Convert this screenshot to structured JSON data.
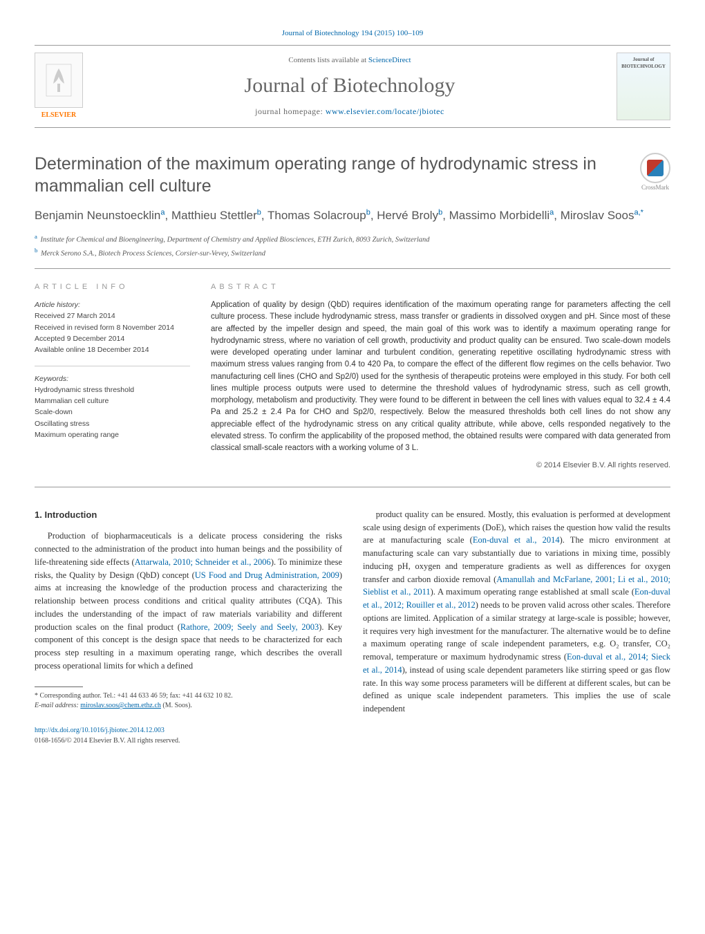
{
  "header": {
    "journal_ref": "Journal of Biotechnology 194 (2015) 100–109",
    "contents_prefix": "Contents lists available at ",
    "contents_link": "ScienceDirect",
    "journal_name": "Journal of Biotechnology",
    "homepage_prefix": "journal homepage: ",
    "homepage_url": "www.elsevier.com/locate/jbiotec",
    "elsevier_label": "ELSEVIER",
    "cover_label": "Journal of BIOTECHNOLOGY"
  },
  "crossmark": {
    "label": "CrossMark"
  },
  "title": "Determination of the maximum operating range of hydrodynamic stress in mammalian cell culture",
  "authors_html": "Benjamin Neunstoecklin<sup>a</sup>, Matthieu Stettler<sup>b</sup>, Thomas Solacroup<sup>b</sup>, Hervé Broly<sup>b</sup>, Massimo Morbidelli<sup>a</sup>, Miroslav Soos<sup>a,*</sup>",
  "affiliations": [
    {
      "sup": "a",
      "text": "Institute for Chemical and Bioengineering, Department of Chemistry and Applied Biosciences, ETH Zurich, 8093 Zurich, Switzerland"
    },
    {
      "sup": "b",
      "text": "Merck Serono S.A., Biotech Process Sciences, Corsier-sur-Vevey, Switzerland"
    }
  ],
  "article_info": {
    "label": "ARTICLE INFO",
    "history_heading": "Article history:",
    "history": [
      "Received 27 March 2014",
      "Received in revised form 8 November 2014",
      "Accepted 9 December 2014",
      "Available online 18 December 2014"
    ],
    "keywords_heading": "Keywords:",
    "keywords": [
      "Hydrodynamic stress threshold",
      "Mammalian cell culture",
      "Scale-down",
      "Oscillating stress",
      "Maximum operating range"
    ]
  },
  "abstract": {
    "label": "ABSTRACT",
    "text": "Application of quality by design (QbD) requires identification of the maximum operating range for parameters affecting the cell culture process. These include hydrodynamic stress, mass transfer or gradients in dissolved oxygen and pH. Since most of these are affected by the impeller design and speed, the main goal of this work was to identify a maximum operating range for hydrodynamic stress, where no variation of cell growth, productivity and product quality can be ensured. Two scale-down models were developed operating under laminar and turbulent condition, generating repetitive oscillating hydrodynamic stress with maximum stress values ranging from 0.4 to 420 Pa, to compare the effect of the different flow regimes on the cells behavior. Two manufacturing cell lines (CHO and Sp2/0) used for the synthesis of therapeutic proteins were employed in this study. For both cell lines multiple process outputs were used to determine the threshold values of hydrodynamic stress, such as cell growth, morphology, metabolism and productivity. They were found to be different in between the cell lines with values equal to 32.4 ± 4.4 Pa and 25.2 ± 2.4 Pa for CHO and Sp2/0, respectively. Below the measured thresholds both cell lines do not show any appreciable effect of the hydrodynamic stress on any critical quality attribute, while above, cells responded negatively to the elevated stress. To confirm the applicability of the proposed method, the obtained results were compared with data generated from classical small-scale reactors with a working volume of 3 L.",
    "copyright": "© 2014 Elsevier B.V. All rights reserved."
  },
  "intro": {
    "heading": "1. Introduction",
    "col1_html": "Production of biopharmaceuticals is a delicate process considering the risks connected to the administration of the product into human beings and the possibility of life-threatening side effects (<span class='cite'>Attarwala, 2010; Schneider et al., 2006</span>). To minimize these risks, the Quality by Design (QbD) concept (<span class='cite'>US Food and Drug Administration, 2009</span>) aims at increasing the knowledge of the production process and characterizing the relationship between process conditions and critical quality attributes (CQA). This includes the understanding of the impact of raw materials variability and different production scales on the final product (<span class='cite'>Rathore, 2009; Seely and Seely, 2003</span>). Key component of this concept is the design space that needs to be characterized for each process step resulting in a maximum operating range, which describes the overall process operational limits for which a defined",
    "col2_html": "product quality can be ensured. Mostly, this evaluation is performed at development scale using design of experiments (DoE), which raises the question how valid the results are at manufacturing scale (<span class='cite'>Eon-duval et al., 2014</span>). The micro environment at manufacturing scale can vary substantially due to variations in mixing time, possibly inducing pH, oxygen and temperature gradients as well as differences for oxygen transfer and carbon dioxide removal (<span class='cite'>Amanullah and McFarlane, 2001; Li et al., 2010; Sieblist et al., 2011</span>). A maximum operating range established at small scale (<span class='cite'>Eon-duval et al., 2012; Rouiller et al., 2012</span>) needs to be proven valid across other scales. Therefore options are limited. Application of a similar strategy at large-scale is possible; however, it requires very high investment for the manufacturer. The alternative would be to define a maximum operating range of scale independent parameters, e.g. O₂ transfer, CO₂ removal, temperature or maximum hydrodynamic stress (<span class='cite'>Eon-duval et al., 2014; Sieck et al., 2014</span>), instead of using scale dependent parameters like stirring speed or gas flow rate. In this way some process parameters will be different at different scales, but can be defined as unique scale independent parameters. This implies the use of scale independent"
  },
  "footnote": {
    "corr": "* Corresponding author. Tel.: +41 44 633 46 59; fax: +41 44 632 10 82.",
    "email_label": "E-mail address: ",
    "email": "miroslav.soos@chem.ethz.ch",
    "email_suffix": " (M. Soos)."
  },
  "footer": {
    "doi": "http://dx.doi.org/10.1016/j.jbiotec.2014.12.003",
    "issn_line": "0168-1656/© 2014 Elsevier B.V. All rights reserved."
  },
  "colors": {
    "link": "#0066aa",
    "orange": "#ff7700",
    "gray_text": "#555555",
    "light_rule": "#999999"
  }
}
